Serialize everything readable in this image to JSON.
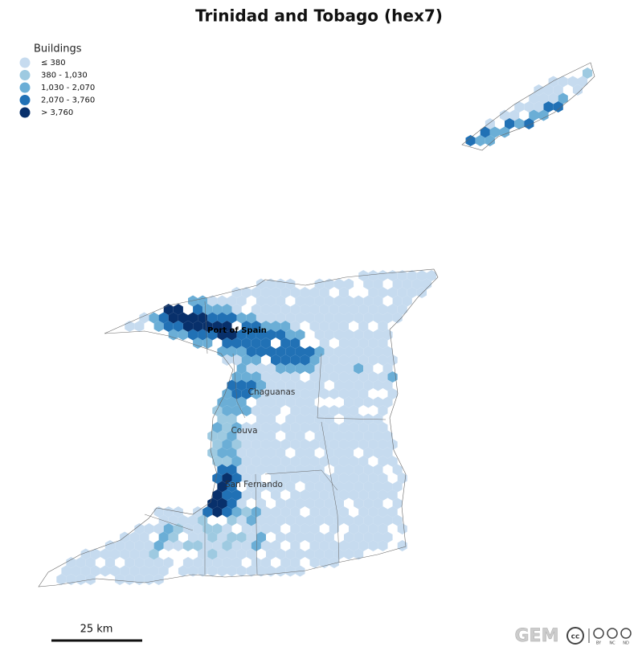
{
  "title": "Trinidad and Tobago (hex7)",
  "legend": {
    "title": "Buildings",
    "items": [
      {
        "label": "≤ 380",
        "color": "#c6dbef"
      },
      {
        "label": "380 - 1,030",
        "color": "#9ecae1"
      },
      {
        "label": "1,030 - 2,070",
        "color": "#6baed6"
      },
      {
        "label": "2,070 - 3,760",
        "color": "#2171b5"
      },
      {
        "label": "> 3,760",
        "color": "#08306b"
      }
    ]
  },
  "cities": [
    {
      "label": "Port of Spain",
      "bold": true
    },
    {
      "label": "Chaguanas",
      "bold": false
    },
    {
      "label": "Couva",
      "bold": false
    },
    {
      "label": "San Fernando",
      "bold": false
    }
  ],
  "scale_bar": "25 km",
  "logo": {
    "text": "GEM",
    "license": [
      "BY",
      "NC",
      "ND"
    ]
  }
}
